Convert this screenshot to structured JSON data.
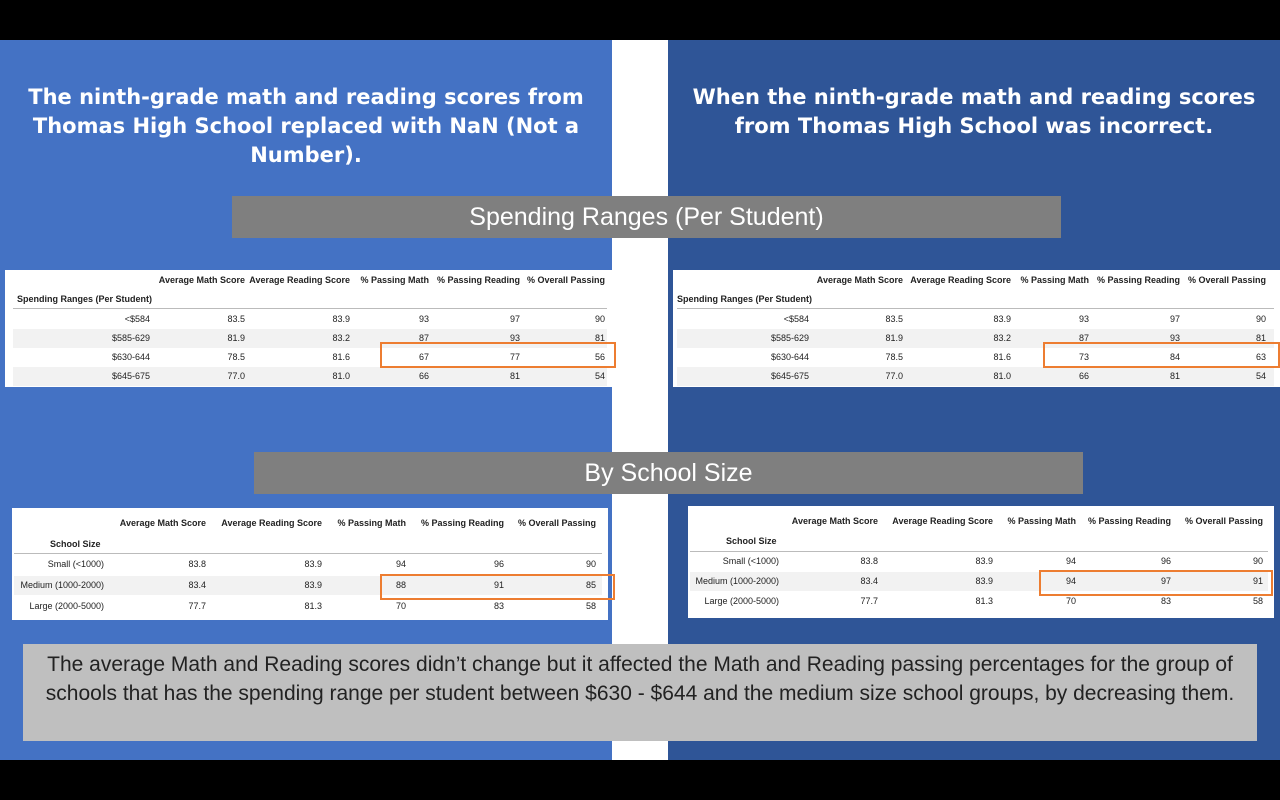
{
  "headings": {
    "left": "The ninth-grade math and reading scores from Thomas High School replaced with NaN (Not a Number).",
    "right": "When the ninth-grade math and reading scores from Thomas High School was incorrect."
  },
  "banners": {
    "spending": "Spending Ranges (Per Student)",
    "size": "By School Size"
  },
  "columns": [
    "Average Math Score",
    "Average Reading Score",
    "% Passing Math",
    "% Passing Reading",
    "% Overall Passing"
  ],
  "spending_index_label": "Spending Ranges (Per Student)",
  "size_index_label": "School Size",
  "spending_left": [
    [
      "<$584",
      "83.5",
      "83.9",
      "93",
      "97",
      "90"
    ],
    [
      "$585-629",
      "81.9",
      "83.2",
      "87",
      "93",
      "81"
    ],
    [
      "$630-644",
      "78.5",
      "81.6",
      "67",
      "77",
      "56"
    ],
    [
      "$645-675",
      "77.0",
      "81.0",
      "66",
      "81",
      "54"
    ]
  ],
  "spending_right": [
    [
      "<$584",
      "83.5",
      "83.9",
      "93",
      "97",
      "90"
    ],
    [
      "$585-629",
      "81.9",
      "83.2",
      "87",
      "93",
      "81"
    ],
    [
      "$630-644",
      "78.5",
      "81.6",
      "73",
      "84",
      "63"
    ],
    [
      "$645-675",
      "77.0",
      "81.0",
      "66",
      "81",
      "54"
    ]
  ],
  "size_left": [
    [
      "Small (<1000)",
      "83.8",
      "83.9",
      "94",
      "96",
      "90"
    ],
    [
      "Medium (1000-2000)",
      "83.4",
      "83.9",
      "88",
      "91",
      "85"
    ],
    [
      "Large (2000-5000)",
      "77.7",
      "81.3",
      "70",
      "83",
      "58"
    ]
  ],
  "size_right": [
    [
      "Small (<1000)",
      "83.8",
      "83.9",
      "94",
      "96",
      "90"
    ],
    [
      "Medium (1000-2000)",
      "83.4",
      "83.9",
      "94",
      "97",
      "91"
    ],
    [
      "Large (2000-5000)",
      "77.7",
      "81.3",
      "70",
      "83",
      "58"
    ]
  ],
  "summary": "The average Math and Reading scores didn’t change but it affected the Math and Reading passing percentages for the group of schools that has the spending range per student between $630 - $644 and the medium size school groups, by decreasing them.",
  "colors": {
    "left_panel": "#4472c4",
    "right_panel": "#2f5597",
    "banner": "#7f7f7f",
    "summary_box": "#bfbfbf",
    "highlight": "#ed7d31"
  }
}
